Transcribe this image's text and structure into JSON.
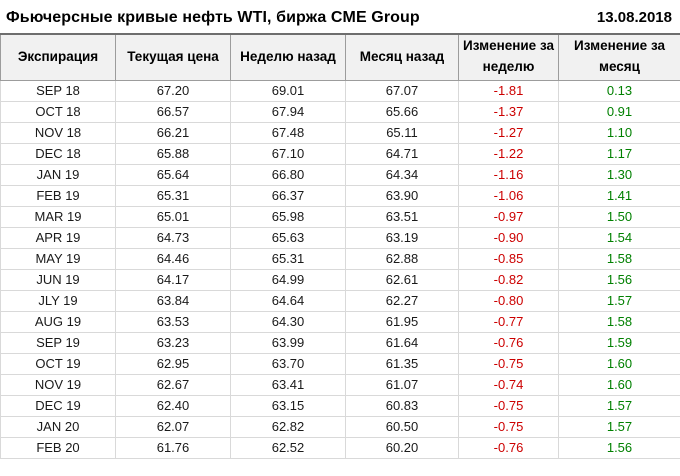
{
  "header": {
    "title": "Фьючерсные кривые нефть WTI, биржа CME Group",
    "date": "13.08.2018"
  },
  "colors": {
    "negative": "#cc0000",
    "positive": "#008000"
  },
  "chart_data": {
    "type": "table",
    "title": "Фьючерсные кривые нефть WTI, биржа CME Group",
    "date": "13.08.2018",
    "columns": [
      "Экспирация",
      "Текущая цена",
      "Неделю назад",
      "Месяц назад",
      "Изменение за неделю",
      "Изменение за месяц"
    ],
    "rows": [
      [
        "SEP 18",
        "67.20",
        "69.01",
        "67.07",
        "-1.81",
        "0.13"
      ],
      [
        "OCT 18",
        "66.57",
        "67.94",
        "65.66",
        "-1.37",
        "0.91"
      ],
      [
        "NOV 18",
        "66.21",
        "67.48",
        "65.11",
        "-1.27",
        "1.10"
      ],
      [
        "DEC 18",
        "65.88",
        "67.10",
        "64.71",
        "-1.22",
        "1.17"
      ],
      [
        "JAN 19",
        "65.64",
        "66.80",
        "64.34",
        "-1.16",
        "1.30"
      ],
      [
        "FEB 19",
        "65.31",
        "66.37",
        "63.90",
        "-1.06",
        "1.41"
      ],
      [
        "MAR 19",
        "65.01",
        "65.98",
        "63.51",
        "-0.97",
        "1.50"
      ],
      [
        "APR 19",
        "64.73",
        "65.63",
        "63.19",
        "-0.90",
        "1.54"
      ],
      [
        "MAY 19",
        "64.46",
        "65.31",
        "62.88",
        "-0.85",
        "1.58"
      ],
      [
        "JUN 19",
        "64.17",
        "64.99",
        "62.61",
        "-0.82",
        "1.56"
      ],
      [
        "JLY 19",
        "63.84",
        "64.64",
        "62.27",
        "-0.80",
        "1.57"
      ],
      [
        "AUG 19",
        "63.53",
        "64.30",
        "61.95",
        "-0.77",
        "1.58"
      ],
      [
        "SEP 19",
        "63.23",
        "63.99",
        "61.64",
        "-0.76",
        "1.59"
      ],
      [
        "OCT 19",
        "62.95",
        "63.70",
        "61.35",
        "-0.75",
        "1.60"
      ],
      [
        "NOV 19",
        "62.67",
        "63.41",
        "61.07",
        "-0.74",
        "1.60"
      ],
      [
        "DEC 19",
        "62.40",
        "63.15",
        "60.83",
        "-0.75",
        "1.57"
      ],
      [
        "JAN 20",
        "62.07",
        "62.82",
        "60.50",
        "-0.75",
        "1.57"
      ],
      [
        "FEB 20",
        "61.76",
        "62.52",
        "60.20",
        "-0.76",
        "1.56"
      ]
    ]
  }
}
